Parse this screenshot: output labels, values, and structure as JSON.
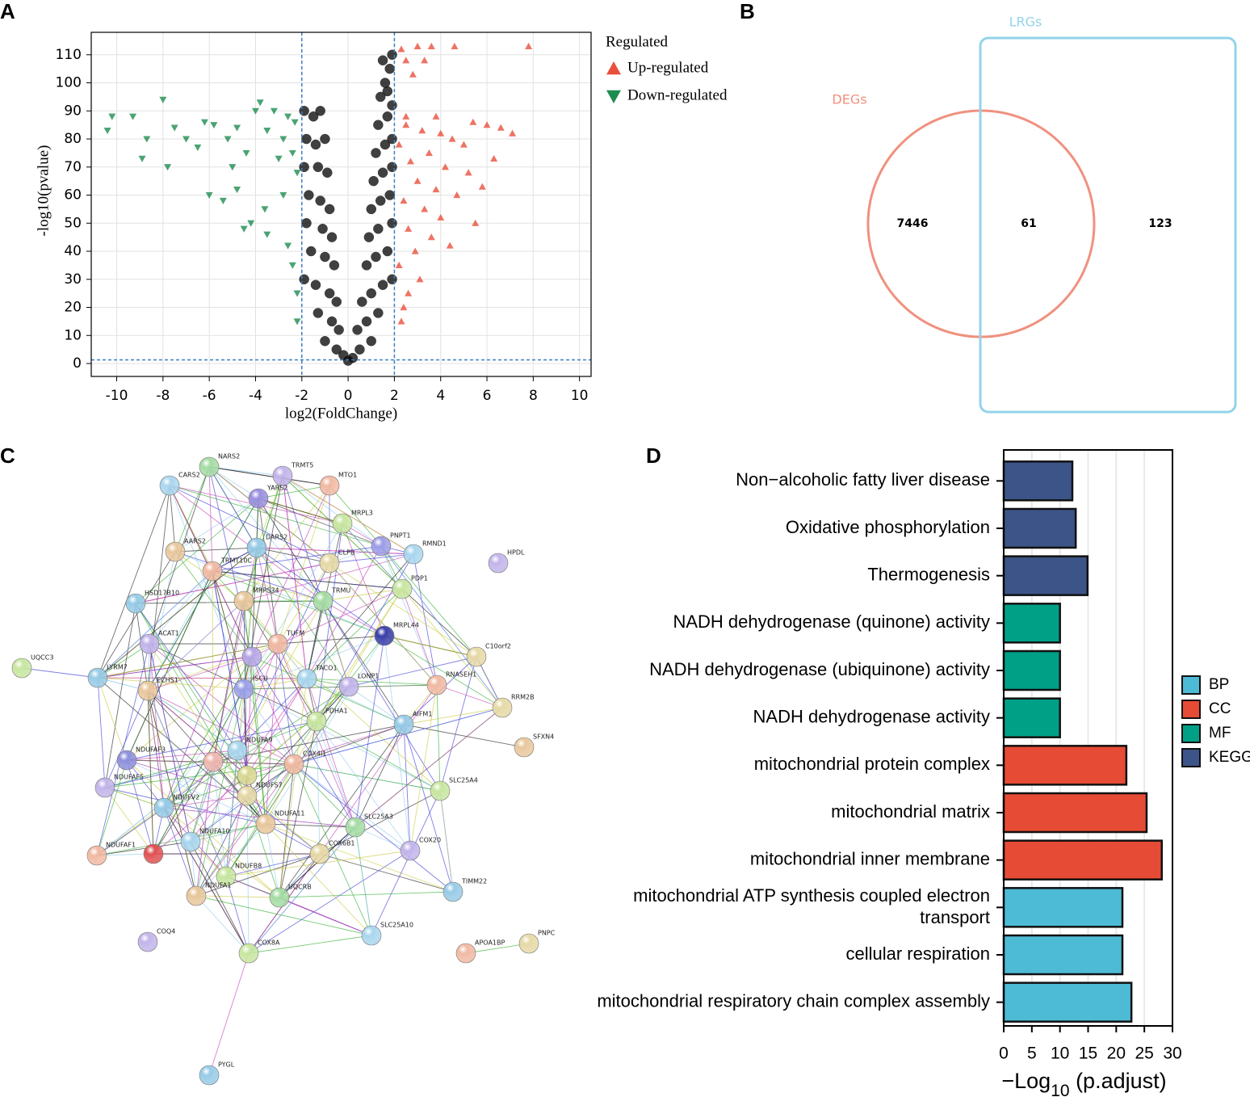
{
  "panel_labels": [
    "A",
    "B",
    "C",
    "D"
  ],
  "chart_data": [
    {
      "type": "scatter",
      "xlabel": "log2(FoldChange)",
      "ylabel": "-log10(pvalue)",
      "legend_title": "Regulated",
      "xlim": [
        -11.1,
        10.5
      ],
      "ylim": [
        -4.6,
        118
      ],
      "xticks": [
        -10,
        -8,
        -6,
        -4,
        -2,
        0,
        2,
        4,
        6,
        8,
        10
      ],
      "yticks": [
        0,
        10,
        20,
        30,
        40,
        50,
        60,
        70,
        80,
        90,
        100,
        110
      ],
      "grid": true,
      "vlines": [
        -2,
        2
      ],
      "hlines": [
        1.3
      ],
      "threshold_color": "#3b7fc4",
      "series": [
        {
          "name": "Up-regulated",
          "color": "#e8503c",
          "marker": "^",
          "x": [
            2.3,
            3.0,
            3.6,
            4.6,
            7.8,
            2.5,
            3.3,
            2.8,
            6.0,
            6.6,
            7.1,
            2.5,
            3.2,
            4.0,
            4.5,
            5.0,
            3.5,
            2.7,
            4.2,
            5.2,
            3.0,
            3.8,
            4.7,
            2.4,
            3.3,
            4.0,
            5.5,
            2.6,
            3.6,
            2.9,
            4.4,
            2.2,
            3.1,
            2.6,
            2.4,
            2.3,
            2.5,
            3.8,
            5.4,
            2.2,
            6.3,
            5.8
          ],
          "y": [
            112,
            113,
            113,
            113,
            113,
            108,
            108,
            103,
            85,
            84,
            82,
            85,
            83,
            82,
            80,
            78,
            75,
            72,
            70,
            68,
            65,
            62,
            60,
            58,
            55,
            52,
            50,
            48,
            45,
            40,
            42,
            35,
            30,
            25,
            20,
            15,
            88,
            88,
            86,
            78,
            73,
            63
          ]
        },
        {
          "name": "Down-regulated",
          "color": "#1e8c50",
          "marker": "v",
          "x": [
            -10.2,
            -10.4,
            -9.3,
            -8.7,
            -8.0,
            -8.9,
            -7.5,
            -7.0,
            -6.2,
            -5.8,
            -6.5,
            -5.2,
            -4.8,
            -4.0,
            -3.8,
            -3.2,
            -2.6,
            -2.3,
            -3.5,
            -2.8,
            -4.4,
            -5.0,
            -3.0,
            -2.4,
            -6.0,
            -5.4,
            -4.8,
            -3.6,
            -4.2,
            -3.5,
            -2.6,
            -2.4,
            -2.2,
            -2.2,
            -2.8,
            -2.2,
            -7.8,
            -4.5
          ],
          "y": [
            88,
            83,
            88,
            80,
            94,
            73,
            84,
            80,
            86,
            85,
            77,
            80,
            84,
            90,
            93,
            90,
            88,
            86,
            83,
            80,
            75,
            70,
            73,
            75,
            60,
            58,
            62,
            55,
            50,
            46,
            42,
            35,
            25,
            15,
            60,
            68,
            70,
            48
          ]
        },
        {
          "color": "#000000",
          "marker": "o",
          "x": [
            -1.9,
            -1.5,
            -1.2,
            -1.8,
            -1.4,
            -1.0,
            -1.9,
            -1.3,
            -0.9,
            -1.7,
            -1.2,
            -0.8,
            -1.8,
            -1.1,
            -0.7,
            -1.6,
            -1.0,
            -0.6,
            -1.9,
            -1.4,
            -0.8,
            -0.5,
            -1.3,
            -0.7,
            -0.4,
            -1.0,
            -0.5,
            -0.2,
            0,
            0.2,
            0.5,
            1.0,
            0.4,
            0.8,
            1.3,
            0.6,
            1.0,
            1.5,
            1.9,
            0.8,
            1.2,
            1.7,
            0.9,
            1.3,
            1.9,
            1.0,
            1.4,
            1.8,
            1.1,
            1.5,
            1.9,
            1.2,
            1.6,
            1.9,
            1.3,
            1.7,
            1.9,
            1.4,
            1.6,
            1.8,
            1.9,
            1.5,
            1.7
          ],
          "y": [
            90,
            88,
            90,
            80,
            78,
            80,
            70,
            70,
            68,
            60,
            58,
            55,
            50,
            48,
            45,
            40,
            38,
            35,
            30,
            28,
            25,
            22,
            18,
            15,
            12,
            8,
            5,
            3,
            1,
            2,
            5,
            8,
            12,
            15,
            18,
            22,
            25,
            28,
            30,
            35,
            38,
            40,
            45,
            48,
            50,
            55,
            58,
            60,
            65,
            68,
            70,
            75,
            78,
            80,
            85,
            88,
            92,
            95,
            100,
            105,
            110,
            108,
            97
          ]
        }
      ]
    },
    {
      "type": "venn",
      "sets": [
        {
          "name": "DEGs",
          "color": "#f0917f"
        },
        {
          "name": "LRGs",
          "color": "#93d3ea"
        }
      ],
      "values": [
        7446,
        61,
        123
      ]
    },
    {
      "type": "bar",
      "orientation": "horizontal",
      "xlabel": "−Log10 (p.adjust)",
      "categories": [
        "Non−alcoholic fatty liver disease",
        "Oxidative phosphorylation",
        "Thermogenesis",
        "NADH dehydrogenase (quinone) activity",
        "NADH dehydrogenase (ubiquinone) activity",
        "NADH dehydrogenase activity",
        "mitochondrial protein complex",
        "mitochondrial matrix",
        "mitochondrial inner membrane",
        "mitochondrial ATP synthesis coupled electron\ntransport",
        "cellular respiration",
        "mitochondrial respiratory chain complex assembly"
      ],
      "xlim": [
        0,
        30
      ],
      "xticks": [
        0,
        5,
        10,
        15,
        20,
        25,
        30
      ],
      "grid": true,
      "series": [
        {
          "name": "BP",
          "color": "#4dbbd5",
          "values": [
            null,
            null,
            null,
            null,
            null,
            null,
            null,
            null,
            null,
            21.1,
            21.1,
            22.7
          ]
        },
        {
          "name": "CC",
          "color": "#e64b35",
          "values": [
            null,
            null,
            null,
            null,
            null,
            null,
            21.8,
            25.4,
            28.1,
            null,
            null,
            null
          ]
        },
        {
          "name": "MF",
          "color": "#00a087",
          "values": [
            null,
            null,
            null,
            10.0,
            10.0,
            10.0,
            null,
            null,
            null,
            null,
            null,
            null
          ]
        },
        {
          "name": "KEGG",
          "color": "#3c5488",
          "values": [
            12.2,
            12.8,
            14.9,
            null,
            null,
            null,
            null,
            null,
            null,
            null,
            null,
            null
          ]
        }
      ]
    }
  ],
  "network": {
    "nodes": [
      {
        "label": "NARS2"
      },
      {
        "label": "CARS2"
      },
      {
        "label": "TRMT5"
      },
      {
        "label": "MTO1"
      },
      {
        "label": "YARS2"
      },
      {
        "label": "MRPL3"
      },
      {
        "label": "DARS2"
      },
      {
        "label": "AARS2"
      },
      {
        "label": "PNPT1"
      },
      {
        "label": "RMND1"
      },
      {
        "label": "HPDL"
      },
      {
        "label": "TRMT10C"
      },
      {
        "label": "CLPB"
      },
      {
        "label": "PDP1"
      },
      {
        "label": "HSD17B10"
      },
      {
        "label": "MRPS34"
      },
      {
        "label": "TRMU"
      },
      {
        "label": "MRPL44"
      },
      {
        "label": "ACAT1"
      },
      {
        "label": "TUFM"
      },
      {
        "label": "C10orf2"
      },
      {
        "label": "UQCC3"
      },
      {
        "label": "LYRM7"
      },
      {
        "label": "ECHS1"
      },
      {
        "label": "ISCU"
      },
      {
        "label": "TACO1"
      },
      {
        "label": "LONP1"
      },
      {
        "label": "RNASEH1"
      },
      {
        "label": "RRM2B"
      },
      {
        "label": "PDHA1"
      },
      {
        "label": "AIFM1"
      },
      {
        "label": "SFXN4"
      },
      {
        "label": "NDUFAF3"
      },
      {
        "label": "NDUFA9"
      },
      {
        "label": "NDUFAF5"
      },
      {
        "label": "COX4I1"
      },
      {
        "label": "NDUFS7"
      },
      {
        "label": "SLC25A4"
      },
      {
        "label": "NDUFV2"
      },
      {
        "label": "NDUFA11"
      },
      {
        "label": "SLC25A3"
      },
      {
        "label": "NDUFA10"
      },
      {
        "label": "COX20"
      },
      {
        "label": "NDUFAF1"
      },
      {
        "label": "COX6B1"
      },
      {
        "label": "NDUFB8"
      },
      {
        "label": "TIMM22"
      },
      {
        "label": "NDUFA1"
      },
      {
        "label": "UQCRB"
      },
      {
        "label": "SLC25A10"
      },
      {
        "label": "COQ4"
      },
      {
        "label": "APOA1BP"
      },
      {
        "label": "PNPC"
      },
      {
        "label": "COX8A"
      },
      {
        "label": "PYGL"
      }
    ]
  }
}
